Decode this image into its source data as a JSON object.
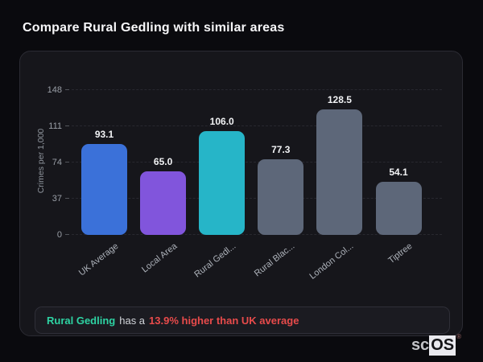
{
  "page": {
    "title": "Compare Rural Gedling with similar areas"
  },
  "chart_data": {
    "type": "bar",
    "categories": [
      "UK Average",
      "Local Area",
      "Rural Gedl...",
      "Rural Blac...",
      "London Col...",
      "Tiptree"
    ],
    "values": [
      93.1,
      65.0,
      106.0,
      77.3,
      128.5,
      54.1
    ],
    "value_labels": [
      "93.1",
      "65.0",
      "106.0",
      "77.3",
      "128.5",
      "54.1"
    ],
    "bar_colors": [
      "#3b71d9",
      "#8155dc",
      "#26b5c8",
      "#5d6779",
      "#5d6779",
      "#5d6779"
    ],
    "highlight_index": 2,
    "title": "",
    "xlabel": "",
    "ylabel": "Crimes per 1,000",
    "yticks": [
      0,
      37,
      74,
      111,
      148
    ],
    "ylim": [
      0,
      161
    ],
    "grid": "horizontal-dashed",
    "legend": "none"
  },
  "insight": {
    "highlight_name": "Rural Gedling",
    "middle_text": "has a",
    "stat_text": "13.9% higher than UK average",
    "highlight_color": "#2ed3a3",
    "stat_color": "#e84b4b"
  },
  "logo": {
    "prefix": "sc",
    "suffix": "OS",
    "registered": "®"
  }
}
